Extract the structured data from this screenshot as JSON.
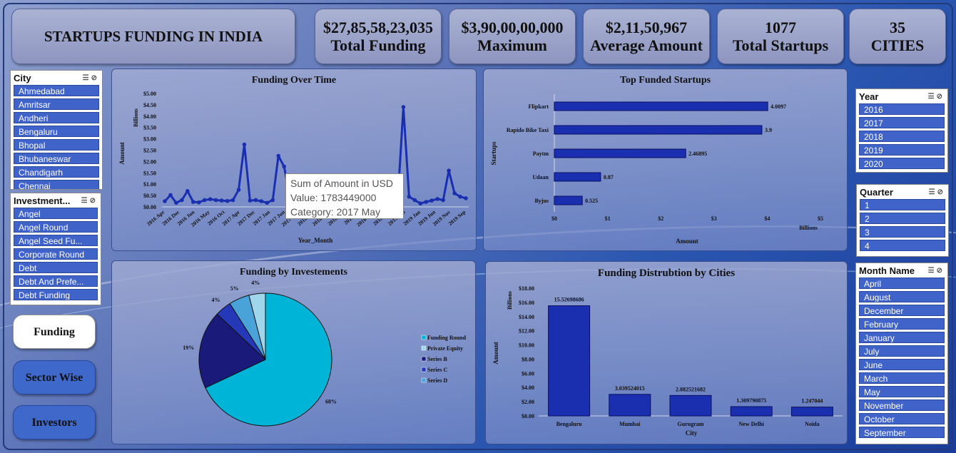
{
  "header": {
    "title": "STARTUPS FUNDING IN INDIA",
    "kpis": [
      {
        "value": "$27,85,58,23,035",
        "label": "Total Funding"
      },
      {
        "value": "$3,90,00,00,000",
        "label": "Maximum"
      },
      {
        "value": "$2,11,50,967",
        "label": "Average Amount"
      },
      {
        "value": "1077",
        "label": "Total Startups"
      },
      {
        "value": "35",
        "label": "CITIES"
      }
    ]
  },
  "slicers": {
    "city": {
      "title": "City",
      "items": [
        "Ahmedabad",
        "Amritsar",
        "Andheri",
        "Bengaluru",
        "Bhopal",
        "Bhubaneswar",
        "Chandigarh",
        "Chennai"
      ]
    },
    "investment": {
      "title": "Investment...",
      "items": [
        "Angel",
        "Angel Round",
        "Angel Seed Fu...",
        "Corporate Round",
        "Debt",
        "Debt And Prefe...",
        "Debt Funding"
      ]
    },
    "year": {
      "title": "Year",
      "items": [
        "2016",
        "2017",
        "2018",
        "2019",
        "2020"
      ]
    },
    "quarter": {
      "title": "Quarter",
      "items": [
        "1",
        "2",
        "3",
        "4"
      ]
    },
    "month": {
      "title": "Month Name",
      "items": [
        "April",
        "August",
        "December",
        "February",
        "January",
        "July",
        "June",
        "March",
        "May",
        "November",
        "October",
        "September"
      ]
    }
  },
  "nav": {
    "funding": "Funding",
    "sector": "Sector Wise",
    "investors": "Investors"
  },
  "tooltip": {
    "line1": "Sum of Amount in USD",
    "line2": "Value: 1783449000",
    "line3": "Category: 2017 May"
  },
  "chart_data": [
    {
      "type": "line",
      "title": "Funding Over Time",
      "xlabel": "Year_Month",
      "ylabel": "Amount",
      "unit_label": "Billions",
      "ylim": [
        0,
        5
      ],
      "ytick_labels": [
        "$0.00",
        "$0.50",
        "$1.00",
        "$1.50",
        "$2.00",
        "$2.50",
        "$3.00",
        "$3.50",
        "$4.00",
        "$4.50",
        "$5.00"
      ],
      "xtick_labels": [
        "2016 Apr",
        "2016 Dec",
        "2016 Jun",
        "2016 May",
        "2016 Oct",
        "2017 Apr",
        "2017 Dec",
        "2017 Jan",
        "2017 Jun",
        "2017 Mar",
        "2018 Apr",
        "2018 Aug",
        "2018 Feb",
        "2018 Jul",
        "2018 Mar",
        "2018 Oct",
        "2019 Feb",
        "2019 Jan",
        "2019 Jun",
        "2019 Nov",
        "2019 Sep"
      ],
      "values": [
        0.25,
        0.52,
        0.18,
        0.3,
        0.7,
        0.22,
        0.2,
        0.3,
        0.34,
        0.3,
        0.28,
        0.26,
        0.3,
        0.75,
        2.75,
        0.28,
        0.3,
        0.25,
        0.18,
        0.3,
        2.25,
        1.78,
        0.45,
        0.32,
        0.35,
        0.3,
        0.28,
        0.3,
        0.32,
        0.28,
        0.3,
        0.35,
        0.28,
        0.3,
        0.32,
        0.3,
        0.3,
        0.3,
        0.3,
        0.28,
        0.35,
        0.3,
        4.4,
        0.45,
        0.3,
        0.15,
        0.22,
        0.28,
        0.35,
        0.3,
        1.6,
        0.6,
        0.45,
        0.38
      ]
    },
    {
      "type": "bar",
      "orientation": "horizontal",
      "title": "Top Funded Startups",
      "xlabel": "Amount",
      "ylabel": "Startups",
      "unit_label": "Billions",
      "categories": [
        "Flipkart",
        "Rapido Bike Taxi",
        "Paytm",
        "Udaan",
        "Byjus"
      ],
      "values": [
        4.0097,
        3.9,
        2.46895,
        0.87,
        0.525
      ],
      "data_labels": [
        "4.0097",
        "3.9",
        "2.46895",
        "0.87",
        "0.525"
      ],
      "xlim": [
        0,
        5
      ],
      "xtick_labels": [
        "$0",
        "$1",
        "$2",
        "$3",
        "$4",
        "$5"
      ]
    },
    {
      "type": "pie",
      "title": "Funding by Investements",
      "categories": [
        "Funding Round",
        "Private Equity",
        "Series B",
        "Series C",
        "Series D"
      ],
      "values": [
        68,
        4,
        19,
        4,
        5
      ],
      "data_labels": [
        "68%",
        "4%",
        "19%",
        "4%",
        "5%"
      ],
      "colors": [
        "#00b4d8",
        "#9fd6ec",
        "#1a1a7a",
        "#2438b8",
        "#4aa3d8"
      ],
      "legend_position": "right"
    },
    {
      "type": "bar",
      "title": "Funding Distrubtion by Cities",
      "xlabel": "City",
      "ylabel": "Amount",
      "unit_label": "Billions",
      "categories": [
        "Bengaluru",
        "Mumbai",
        "Gurugram",
        "New Delhi",
        "Noida"
      ],
      "values": [
        15.52698686,
        3.039524015,
        2.882521682,
        1.309790875,
        1.247044
      ],
      "data_labels": [
        "15.52698686",
        "3.039524015",
        "2.882521682",
        "1.309790875",
        "1.247044"
      ],
      "ylim": [
        0,
        18
      ],
      "ytick_labels": [
        "$0.00",
        "$2.00",
        "$4.00",
        "$6.00",
        "$8.00",
        "$10.00",
        "$12.00",
        "$14.00",
        "$16.00",
        "$18.00"
      ]
    }
  ]
}
